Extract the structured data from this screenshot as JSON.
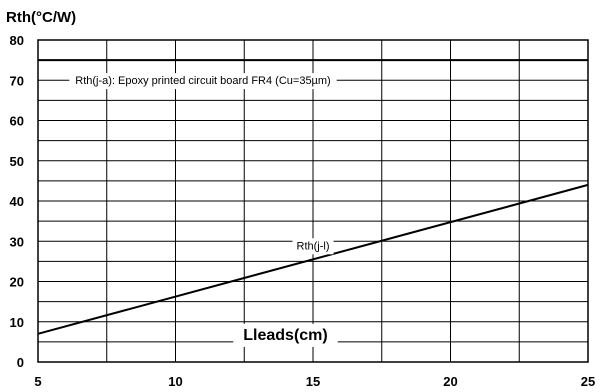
{
  "chart_data": {
    "type": "line",
    "ylabel": "Rth(°C/W)",
    "xlabel": "Lleads(cm)",
    "xlim": [
      5,
      25
    ],
    "ylim": [
      0,
      80
    ],
    "x_ticks": [
      5,
      10,
      15,
      20,
      25
    ],
    "y_ticks": [
      0,
      10,
      20,
      30,
      40,
      50,
      60,
      70,
      80
    ],
    "x_grid_step": 2.5,
    "y_grid_step": 5,
    "grid": true,
    "series": [
      {
        "name": "Rth(j-a): Epoxy printed circuit board FR4 (Cu=35µm)",
        "x": [
          5,
          25
        ],
        "y": [
          75,
          75
        ]
      },
      {
        "name": "Rth(j-l)",
        "x": [
          5,
          25
        ],
        "y": [
          7,
          44
        ]
      }
    ]
  }
}
